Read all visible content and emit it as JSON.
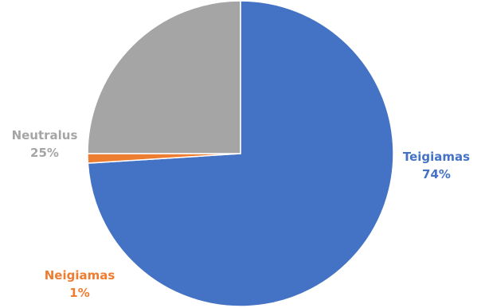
{
  "chart_data": {
    "type": "pie",
    "start_angle_deg": 0,
    "direction": "clockwise",
    "slices": [
      {
        "label": "Teigiamas",
        "value": 74,
        "value_label": "74%",
        "color": "#4472C4"
      },
      {
        "label": "Neigiamas",
        "value": 1,
        "value_label": "1%",
        "color": "#ED7D31"
      },
      {
        "label": "Neutralus",
        "value": 25,
        "value_label": "25%",
        "color": "#A5A5A5"
      }
    ],
    "legend": "none"
  }
}
